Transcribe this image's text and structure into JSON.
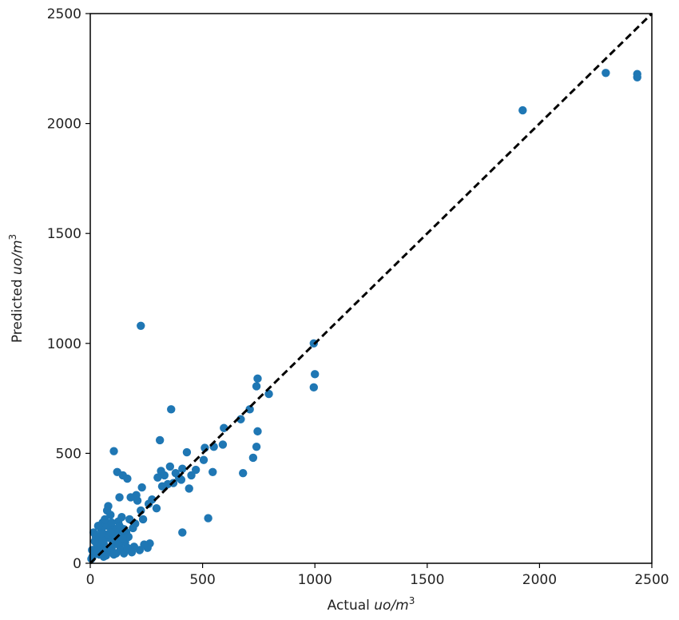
{
  "chart_data": {
    "type": "scatter",
    "xlabel_main": "Actual ",
    "ylabel_main": "Predicted ",
    "unit_italic": "uo/m",
    "unit_exp": "3",
    "xlim": [
      0,
      2500
    ],
    "ylim": [
      0,
      2500
    ],
    "xticks": [
      "0",
      "500",
      "1000",
      "1500",
      "2000",
      "2500"
    ],
    "yticks": [
      "0",
      "500",
      "1000",
      "1500",
      "2000",
      "2500"
    ],
    "grid": false,
    "marker_color": "#1f77b4",
    "reference_line": {
      "style": "dashed",
      "color": "#000000",
      "from": [
        0,
        0
      ],
      "to": [
        2500,
        2500
      ]
    },
    "points": [
      [
        2295,
        2230
      ],
      [
        2435,
        2225
      ],
      [
        2435,
        2210
      ],
      [
        1925,
        2060
      ],
      [
        995,
        1000
      ],
      [
        1000,
        860
      ],
      [
        995,
        800
      ],
      [
        225,
        1080
      ],
      [
        745,
        840
      ],
      [
        740,
        805
      ],
      [
        795,
        770
      ],
      [
        745,
        600
      ],
      [
        740,
        530
      ],
      [
        725,
        480
      ],
      [
        710,
        700
      ],
      [
        670,
        655
      ],
      [
        680,
        410
      ],
      [
        590,
        540
      ],
      [
        595,
        615
      ],
      [
        550,
        530
      ],
      [
        545,
        415
      ],
      [
        510,
        525
      ],
      [
        505,
        470
      ],
      [
        525,
        205
      ],
      [
        470,
        425
      ],
      [
        450,
        400
      ],
      [
        430,
        505
      ],
      [
        440,
        340
      ],
      [
        410,
        430
      ],
      [
        405,
        380
      ],
      [
        410,
        140
      ],
      [
        395,
        390
      ],
      [
        380,
        410
      ],
      [
        370,
        365
      ],
      [
        360,
        700
      ],
      [
        355,
        440
      ],
      [
        345,
        360
      ],
      [
        330,
        400
      ],
      [
        320,
        350
      ],
      [
        315,
        420
      ],
      [
        310,
        560
      ],
      [
        300,
        390
      ],
      [
        295,
        250
      ],
      [
        275,
        290
      ],
      [
        260,
        270
      ],
      [
        265,
        90
      ],
      [
        255,
        70
      ],
      [
        240,
        85
      ],
      [
        235,
        200
      ],
      [
        230,
        345
      ],
      [
        225,
        240
      ],
      [
        220,
        60
      ],
      [
        210,
        285
      ],
      [
        205,
        310
      ],
      [
        200,
        180
      ],
      [
        195,
        75
      ],
      [
        185,
        50
      ],
      [
        180,
        300
      ],
      [
        175,
        200
      ],
      [
        165,
        385
      ],
      [
        160,
        140
      ],
      [
        150,
        155
      ],
      [
        145,
        400
      ],
      [
        140,
        210
      ],
      [
        130,
        300
      ],
      [
        125,
        190
      ],
      [
        120,
        415
      ],
      [
        110,
        100
      ],
      [
        105,
        510
      ],
      [
        100,
        160
      ],
      [
        95,
        70
      ],
      [
        90,
        220
      ],
      [
        85,
        115
      ],
      [
        80,
        260
      ],
      [
        75,
        240
      ],
      [
        70,
        130
      ],
      [
        65,
        60
      ],
      [
        60,
        90
      ],
      [
        55,
        185
      ],
      [
        50,
        150
      ],
      [
        45,
        110
      ],
      [
        40,
        40
      ],
      [
        35,
        170
      ],
      [
        30,
        80
      ],
      [
        25,
        120
      ],
      [
        20,
        50
      ],
      [
        15,
        140
      ],
      [
        10,
        30
      ],
      [
        8,
        60
      ],
      [
        5,
        20
      ],
      [
        115,
        45
      ],
      [
        135,
        65
      ],
      [
        155,
        95
      ],
      [
        170,
        120
      ],
      [
        190,
        160
      ],
      [
        60,
        30
      ],
      [
        85,
        60
      ],
      [
        100,
        90
      ],
      [
        120,
        110
      ],
      [
        140,
        135
      ],
      [
        75,
        170
      ],
      [
        95,
        185
      ],
      [
        55,
        105
      ],
      [
        40,
        65
      ],
      [
        115,
        150
      ],
      [
        130,
        170
      ],
      [
        150,
        45
      ],
      [
        165,
        70
      ],
      [
        65,
        200
      ],
      [
        70,
        35
      ],
      [
        105,
        40
      ],
      [
        125,
        85
      ],
      [
        145,
        115
      ],
      [
        50,
        135
      ],
      [
        30,
        55
      ],
      [
        20,
        100
      ],
      [
        90,
        140
      ],
      [
        110,
        125
      ]
    ]
  }
}
